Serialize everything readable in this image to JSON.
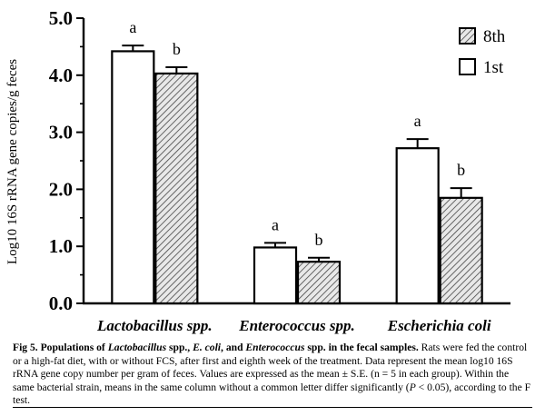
{
  "chart_data": {
    "type": "bar",
    "ylabel": "Log10 16S rRNA gene copies/g feces",
    "ylim": [
      0,
      5
    ],
    "yticks": [
      "0.0",
      "1.0",
      "2.0",
      "3.0",
      "4.0",
      "5.0"
    ],
    "categories": [
      "Lactobacillus spp.",
      "Enterococcus spp.",
      "Escherichia coli"
    ],
    "series": [
      {
        "name": "1st",
        "fill": "white",
        "values": [
          4.42,
          0.98,
          2.72
        ],
        "errors": [
          0.1,
          0.08,
          0.16
        ],
        "letters": [
          "a",
          "a",
          "a"
        ]
      },
      {
        "name": "8th",
        "fill": "hatched",
        "values": [
          4.03,
          0.73,
          1.85
        ],
        "errors": [
          0.11,
          0.07,
          0.17
        ],
        "letters": [
          "b",
          "b",
          "b"
        ]
      }
    ],
    "legend": {
      "position": "top-right",
      "order": [
        "8th",
        "1st"
      ]
    }
  },
  "caption": {
    "lead_parts": [
      "Fig 5. Populations of ",
      "Lactobacillus",
      " spp., ",
      "E. coli",
      ", and ",
      "Enterococcus",
      " spp. in the fecal samples."
    ],
    "body_1": " Rats were fed the control or a high-fat diet, with or without FCS, after first and eighth week of the treatment. Data represent the mean log10 16S rRNA gene copy number per gram of feces. Values are expressed as the mean ± S.E. (n = 5 in each group). Within the same bacterial strain, means in the same column without a common letter differ significantly (",
    "p_symbol": "P",
    "body_2": " < 0.05), according to the F test."
  }
}
